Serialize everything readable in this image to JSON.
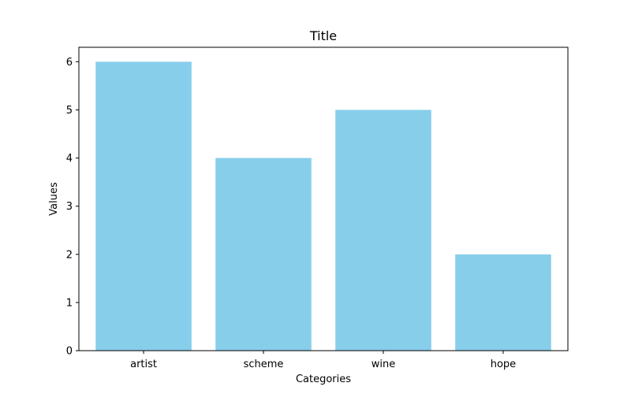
{
  "chart_data": {
    "type": "bar",
    "title": "Title",
    "xlabel": "Categories",
    "ylabel": "Values",
    "categories": [
      "artist",
      "scheme",
      "wine",
      "hope"
    ],
    "values": [
      6,
      4,
      5,
      2
    ],
    "ylim": [
      0,
      6.3
    ],
    "yticks": [
      0,
      1,
      2,
      3,
      4,
      5,
      6
    ],
    "bar_color": "#87ceeb",
    "grid": false,
    "legend": false
  }
}
